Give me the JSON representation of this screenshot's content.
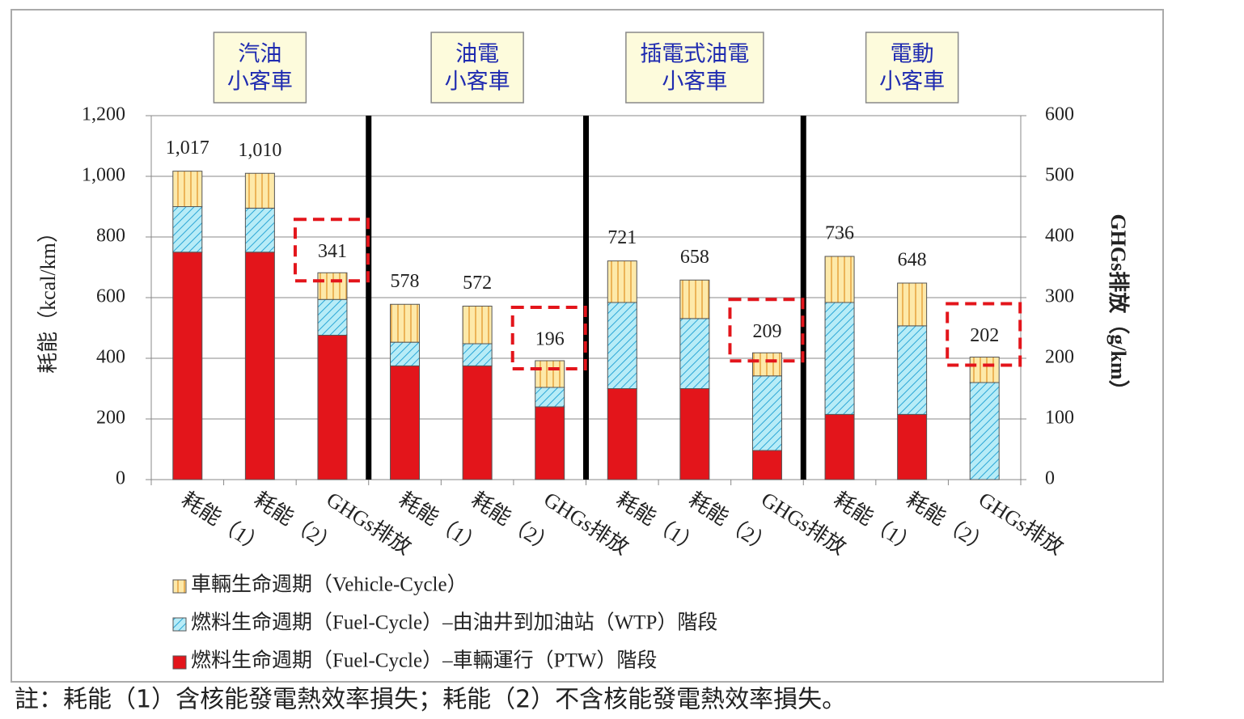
{
  "chart_data": {
    "type": "stacked_bar",
    "groups": [
      [
        "汽油",
        "小客車"
      ],
      [
        "油電",
        "小客車"
      ],
      [
        "插電式油電",
        "小客車"
      ],
      [
        "電動",
        "小客車"
      ]
    ],
    "categories": [
      "耗能（1）",
      "耗能（2）",
      "GHGs排放",
      "耗能（1）",
      "耗能（2）",
      "GHGs排放",
      "耗能（1）",
      "耗能（2）",
      "GHGs排放",
      "耗能（1）",
      "耗能（2）",
      "GHGs排放"
    ],
    "axes": [
      "y",
      "y",
      "y2",
      "y",
      "y",
      "y2",
      "y",
      "y",
      "y2",
      "y",
      "y",
      "y2"
    ],
    "series": [
      {
        "name": "燃料生命週期（Fuel-Cycle）–車輛運行（PTW）階段",
        "color": "#e3151b",
        "values": [
          750,
          750,
          238,
          375,
          375,
          120,
          300,
          300,
          48,
          215,
          215,
          0
        ]
      },
      {
        "name": "燃料生命週期（Fuel-Cycle）–由油井到加油站（WTP）階段",
        "color": "#b7ecf7",
        "values": [
          150,
          145,
          59,
          78,
          73,
          32,
          284,
          231,
          123,
          369,
          292,
          160
        ]
      },
      {
        "name": "車輛生命週期（Vehicle-Cycle）",
        "color": "#fde9a9",
        "values": [
          117,
          115,
          44,
          125,
          124,
          44,
          137,
          127,
          38,
          152,
          141,
          42
        ]
      }
    ],
    "totals": [
      1017,
      1010,
      341,
      578,
      572,
      196,
      721,
      658,
      209,
      736,
      648,
      202
    ],
    "value_labels": [
      "1,017",
      "1,010",
      "341",
      "578",
      "572",
      "196",
      "721",
      "658",
      "209",
      "736",
      "648",
      "202"
    ],
    "ylabel": "耗能（kcal/km）",
    "y2label": "GHGs排放（g/km）",
    "ylim": [
      0,
      1200
    ],
    "yticks": [
      0,
      200,
      400,
      600,
      800,
      {
        "value": 1000,
        "label": "1,000"
      },
      {
        "value": 1200,
        "label": "1,200"
      }
    ],
    "y2lim": [
      0,
      600
    ],
    "y2ticks": [
      0,
      100,
      200,
      300,
      400,
      500,
      600
    ],
    "grid": true,
    "note": "註：耗能（1）含核能發電熱效率損失；耗能（2）不含核能發電熱效率損失。"
  }
}
